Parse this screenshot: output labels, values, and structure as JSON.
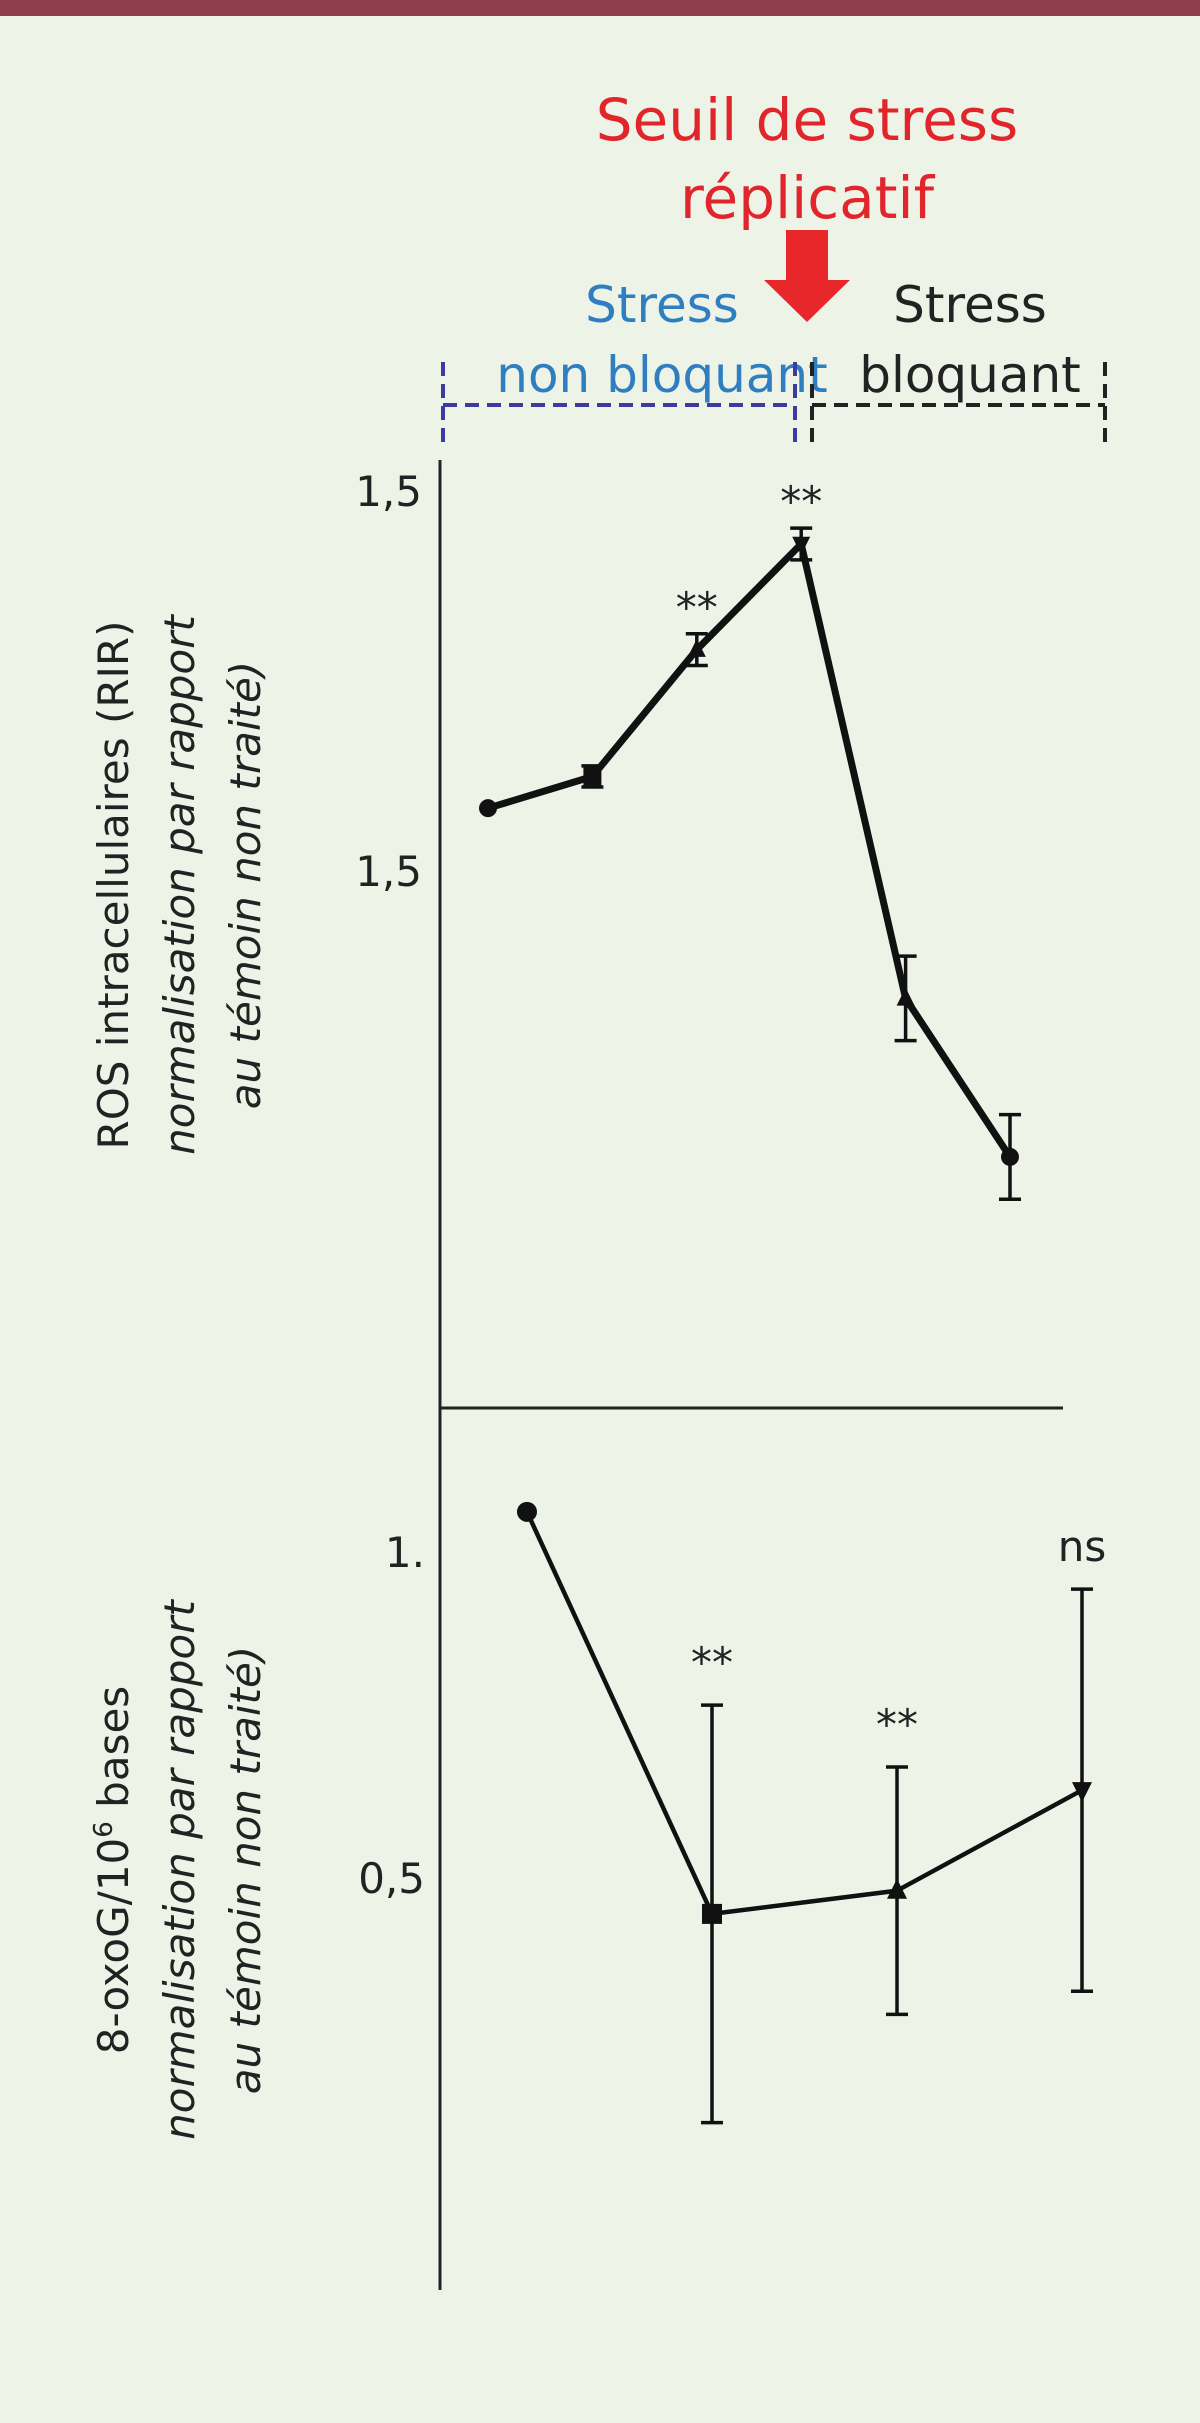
{
  "header": {
    "threshold_line1": "Seuil de stress",
    "threshold_line2": "réplicatif",
    "stress_nb_line1": "Stress",
    "stress_nb_line2": "non bloquant",
    "stress_b_line1": "Stress",
    "stress_b_line2": "bloquant"
  },
  "colors": {
    "threshold_text": "#e0262b",
    "arrow": "#e8272a",
    "non_blocking": "#2f7fc0",
    "non_blocking_bracket": "#3b3ba0",
    "blocking": "#222222",
    "background": "#eef3e8",
    "top_bar": "#8e3f4b"
  },
  "chart_data": [
    {
      "type": "line",
      "ylabel_line1": "ROS intracellulaires (RIR)",
      "ylabel_line2": "normalisation par rapport",
      "ylabel_line3": "au témoin non traité)",
      "ytick_labels": [
        "1,5",
        "1,5"
      ],
      "x": [
        1,
        2,
        3,
        4,
        5,
        6
      ],
      "series": [
        {
          "values": [
            1.47,
            1.5,
            1.62,
            1.72,
            1.29,
            1.14
          ],
          "errors": [
            0.0,
            0.01,
            0.015,
            0.015,
            0.04,
            0.04
          ],
          "markers": [
            "circle",
            "square",
            "triangle-up",
            "triangle-down",
            "triangle-up",
            "circle"
          ],
          "annotations": [
            "",
            "",
            "**",
            "**",
            "",
            ""
          ]
        }
      ],
      "ylim": [
        0.91,
        1.79
      ]
    },
    {
      "type": "line",
      "ylabel_line1": "8-oxoG/10",
      "ylabel_sup": "6",
      "ylabel_line1_suffix": " bases",
      "ylabel_line2": "normalisation par rapport",
      "ylabel_line3": "au témoin non traité)",
      "ytick_labels": [
        "1.",
        "0,5"
      ],
      "x": [
        1,
        2,
        3,
        4
      ],
      "series": [
        {
          "values": [
            1.0,
            0.48,
            0.51,
            0.64
          ],
          "errors": [
            0.0,
            0.27,
            0.16,
            0.26
          ],
          "markers": [
            "circle",
            "square",
            "triangle-up",
            "triangle-down"
          ],
          "annotations": [
            "",
            "**",
            "**",
            "ns"
          ]
        }
      ],
      "ylim": [
        0.0,
        1.08
      ]
    }
  ]
}
